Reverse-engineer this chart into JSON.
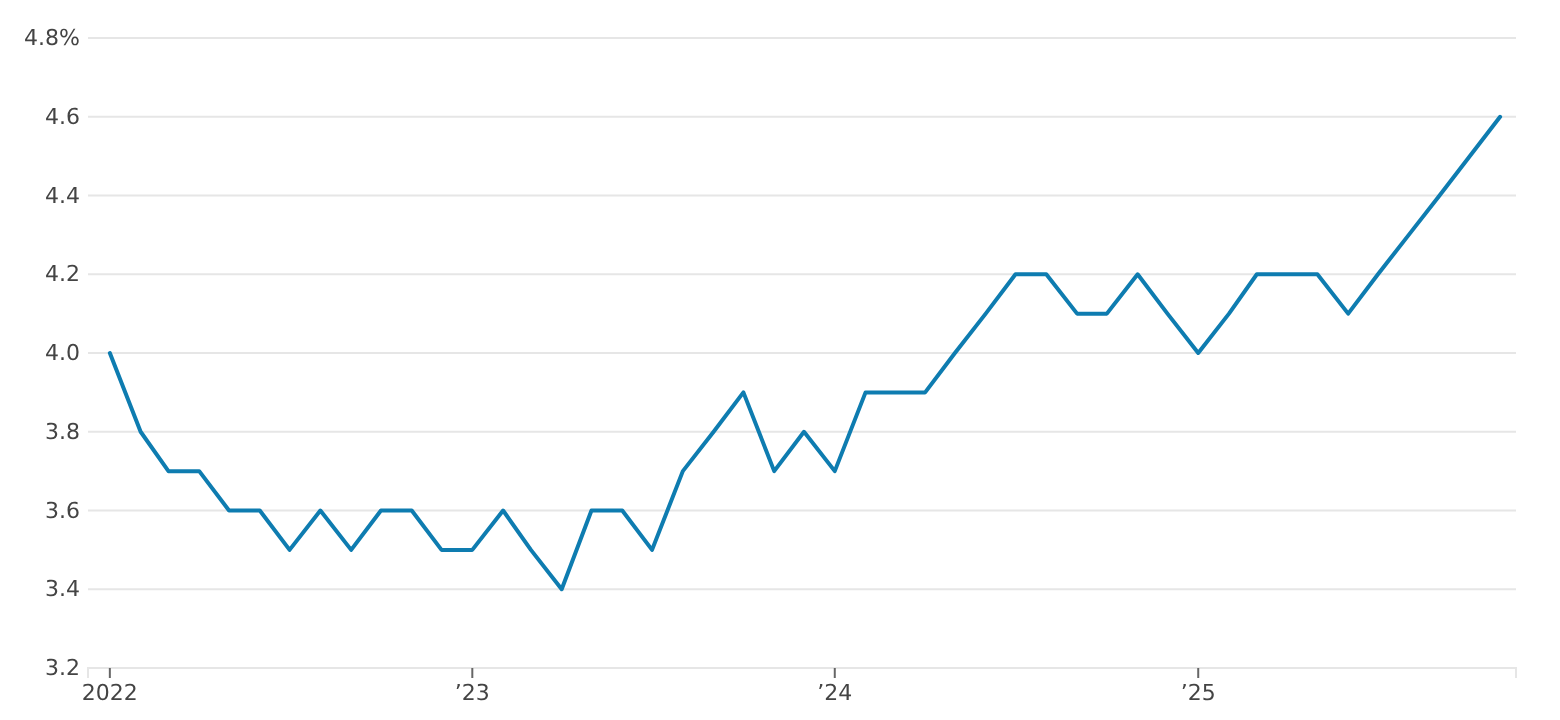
{
  "chart_data": {
    "type": "line",
    "x": [
      "2022-01",
      "2022-02",
      "2022-03",
      "2022-04",
      "2022-05",
      "2022-06",
      "2022-07",
      "2022-08",
      "2022-09",
      "2022-10",
      "2022-11",
      "2022-12",
      "2023-01",
      "2023-02",
      "2023-03",
      "2023-04",
      "2023-05",
      "2023-06",
      "2023-07",
      "2023-08",
      "2023-09",
      "2023-10",
      "2023-11",
      "2023-12",
      "2024-01",
      "2024-02",
      "2024-03",
      "2024-04",
      "2024-05",
      "2024-06",
      "2024-07",
      "2024-08",
      "2024-09",
      "2024-10",
      "2024-11",
      "2024-12",
      "2025-01",
      "2025-02",
      "2025-03",
      "2025-04",
      "2025-05",
      "2025-06",
      "2025-07",
      "2025-08",
      "2025-09",
      "2025-11"
    ],
    "series": [
      {
        "color": "#0e7cb0",
        "values": [
          4.0,
          3.8,
          3.7,
          3.7,
          3.6,
          3.6,
          3.5,
          3.6,
          3.5,
          3.6,
          3.6,
          3.5,
          3.5,
          3.6,
          3.5,
          3.4,
          3.6,
          3.6,
          3.5,
          3.7,
          3.8,
          3.9,
          3.7,
          3.8,
          3.7,
          3.9,
          3.9,
          3.9,
          4.0,
          4.1,
          4.2,
          4.2,
          4.1,
          4.1,
          4.2,
          4.1,
          4.0,
          4.1,
          4.2,
          4.2,
          4.2,
          4.1,
          4.2,
          4.3,
          4.4,
          4.6
        ]
      }
    ],
    "xlim": [
      "2021-12-10",
      "2025-11-17"
    ],
    "xticks": [
      {
        "value": "2022-01",
        "label": "2022"
      },
      {
        "value": "2023-01",
        "label": "’23"
      },
      {
        "value": "2024-01",
        "label": "’24"
      },
      {
        "value": "2025-01",
        "label": "’25"
      }
    ],
    "ylim": [
      3.2,
      4.8
    ],
    "yticks": [
      {
        "value": 3.2,
        "label": "3.2"
      },
      {
        "value": 3.4,
        "label": "3.4"
      },
      {
        "value": 3.6,
        "label": "3.6"
      },
      {
        "value": 3.8,
        "label": "3.8"
      },
      {
        "value": 4.0,
        "label": "4.0"
      },
      {
        "value": 4.2,
        "label": "4.2"
      },
      {
        "value": 4.4,
        "label": "4.4"
      },
      {
        "value": 4.6,
        "label": "4.6"
      },
      {
        "value": 4.8,
        "label": "4.8%"
      }
    ],
    "grid": "y",
    "marker": "none",
    "line_style": "solid"
  }
}
